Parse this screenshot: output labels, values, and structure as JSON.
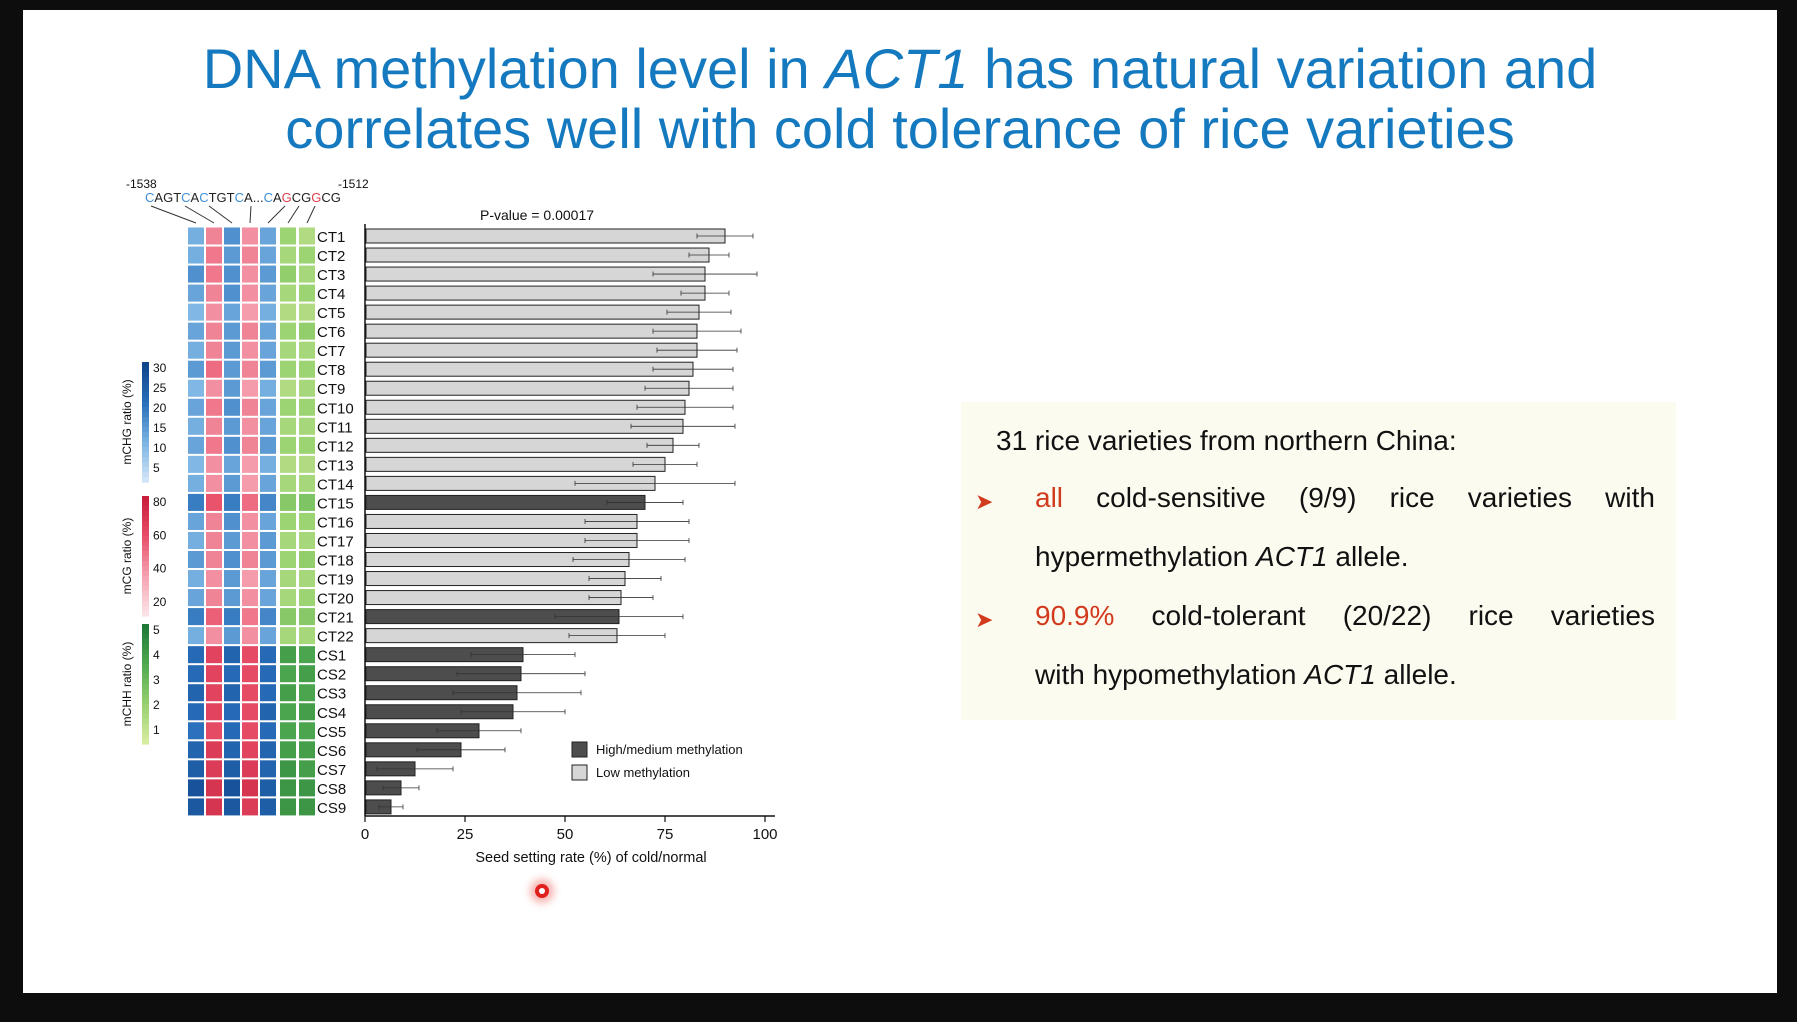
{
  "title": {
    "line1_pre": "DNA methylation level in ",
    "line1_gene": "ACT1",
    "line1_post": " has natural variation and",
    "line2": "correlates well with cold tolerance of rice varieties"
  },
  "sequence": {
    "start_pos": "-1538",
    "end_pos": "-1512",
    "text": "CAGTCACTGTCA...CAGCGGCG"
  },
  "info": {
    "heading": "31 rice varieties from northern China:",
    "bullet1": {
      "highlight": "all",
      "words": [
        "cold-sensitive",
        "(9/9)",
        "rice",
        "varieties",
        "with"
      ],
      "line2_pre": "hypermethylation ",
      "gene": "ACT1",
      "line2_post": " allele."
    },
    "bullet2": {
      "highlight": "90.9%",
      "words": [
        "cold-tolerant",
        "(20/22)",
        "rice",
        "varieties"
      ],
      "line2_pre": "with hypomethylation ",
      "gene": "ACT1",
      "line2_post": " allele."
    }
  },
  "colors": {
    "title": "#1479be",
    "high_methylation": "#4d4d4d",
    "low_methylation": "#d6d6d6",
    "accent_red": "#d23a1e"
  },
  "chart_data": {
    "type": "bar",
    "orientation": "horizontal",
    "annotation": "P-value = 0.00017",
    "xlabel": "Seed setting rate (%) of cold/normal",
    "xlim": [
      0,
      100
    ],
    "xticks": [
      0,
      25,
      50,
      75,
      100
    ],
    "legend": [
      {
        "label": "High/medium methylation",
        "color": "#4d4d4d"
      },
      {
        "label": "Low methylation",
        "color": "#d6d6d6"
      }
    ],
    "categories": [
      "CT1",
      "CT2",
      "CT3",
      "CT4",
      "CT5",
      "CT6",
      "CT7",
      "CT8",
      "CT9",
      "CT10",
      "CT11",
      "CT12",
      "CT13",
      "CT14",
      "CT15",
      "CT16",
      "CT17",
      "CT18",
      "CT19",
      "CT20",
      "CT21",
      "CT22",
      "CS1",
      "CS2",
      "CS3",
      "CS4",
      "CS5",
      "CS6",
      "CS7",
      "CS8",
      "CS9"
    ],
    "values": [
      90,
      86,
      85,
      85,
      83.5,
      83,
      83,
      82,
      81,
      80,
      79.5,
      77,
      75,
      72.5,
      70,
      68,
      68,
      66,
      65,
      64,
      63.5,
      63,
      39.5,
      39,
      38,
      37,
      28.5,
      24,
      12.5,
      9,
      6.5
    ],
    "errors": [
      7,
      5,
      13,
      6,
      8,
      11,
      10,
      10,
      11,
      12,
      13,
      6.5,
      8,
      20,
      9.5,
      13,
      13,
      14,
      9,
      8,
      16,
      12,
      13,
      16,
      16,
      13,
      10.5,
      11,
      9.5,
      4.5,
      3
    ],
    "methylation_group": [
      "low",
      "low",
      "low",
      "low",
      "low",
      "low",
      "low",
      "low",
      "low",
      "low",
      "low",
      "low",
      "low",
      "low",
      "high",
      "low",
      "low",
      "low",
      "low",
      "low",
      "high",
      "low",
      "high",
      "high",
      "high",
      "high",
      "high",
      "high",
      "high",
      "high",
      "high"
    ],
    "heatmap": {
      "columns": [
        "mCHG",
        "mCG",
        "mCHG",
        "mCG",
        "mCHG",
        "mCHH",
        "mCHH"
      ],
      "scales": [
        {
          "name": "mCHG ratio (%)",
          "ticks": [
            30,
            25,
            20,
            15,
            10,
            5
          ]
        },
        {
          "name": "mCG ratio (%)",
          "ticks": [
            80,
            60,
            40,
            20
          ]
        },
        {
          "name": "mCHH ratio (%)",
          "ticks": [
            5,
            4,
            3,
            2,
            1
          ]
        }
      ],
      "rows": [
        [
          0.35,
          0.45,
          0.5,
          0.4,
          0.4,
          0.3,
          0.2
        ],
        [
          0.35,
          0.5,
          0.45,
          0.45,
          0.4,
          0.25,
          0.3
        ],
        [
          0.5,
          0.5,
          0.5,
          0.4,
          0.45,
          0.35,
          0.25
        ],
        [
          0.4,
          0.45,
          0.5,
          0.4,
          0.4,
          0.25,
          0.3
        ],
        [
          0.3,
          0.4,
          0.4,
          0.35,
          0.35,
          0.2,
          0.2
        ],
        [
          0.4,
          0.45,
          0.45,
          0.45,
          0.4,
          0.3,
          0.35
        ],
        [
          0.35,
          0.45,
          0.45,
          0.4,
          0.4,
          0.25,
          0.25
        ],
        [
          0.45,
          0.55,
          0.45,
          0.45,
          0.45,
          0.3,
          0.3
        ],
        [
          0.3,
          0.4,
          0.45,
          0.35,
          0.35,
          0.2,
          0.25
        ],
        [
          0.4,
          0.5,
          0.5,
          0.45,
          0.4,
          0.3,
          0.3
        ],
        [
          0.35,
          0.45,
          0.45,
          0.4,
          0.4,
          0.25,
          0.25
        ],
        [
          0.4,
          0.5,
          0.5,
          0.45,
          0.45,
          0.3,
          0.3
        ],
        [
          0.3,
          0.4,
          0.4,
          0.35,
          0.35,
          0.2,
          0.2
        ],
        [
          0.35,
          0.4,
          0.45,
          0.35,
          0.4,
          0.25,
          0.25
        ],
        [
          0.6,
          0.65,
          0.6,
          0.55,
          0.55,
          0.4,
          0.45
        ],
        [
          0.4,
          0.45,
          0.5,
          0.4,
          0.4,
          0.3,
          0.3
        ],
        [
          0.35,
          0.45,
          0.45,
          0.4,
          0.45,
          0.25,
          0.25
        ],
        [
          0.45,
          0.45,
          0.5,
          0.45,
          0.45,
          0.3,
          0.35
        ],
        [
          0.35,
          0.4,
          0.45,
          0.35,
          0.4,
          0.25,
          0.25
        ],
        [
          0.4,
          0.45,
          0.45,
          0.4,
          0.4,
          0.25,
          0.3
        ],
        [
          0.6,
          0.6,
          0.6,
          0.5,
          0.55,
          0.4,
          0.4
        ],
        [
          0.35,
          0.4,
          0.45,
          0.4,
          0.4,
          0.25,
          0.25
        ],
        [
          0.7,
          0.75,
          0.75,
          0.7,
          0.7,
          0.75,
          0.7
        ],
        [
          0.7,
          0.75,
          0.7,
          0.7,
          0.7,
          0.7,
          0.75
        ],
        [
          0.75,
          0.75,
          0.75,
          0.7,
          0.7,
          0.75,
          0.7
        ],
        [
          0.7,
          0.75,
          0.7,
          0.7,
          0.75,
          0.7,
          0.75
        ],
        [
          0.65,
          0.7,
          0.7,
          0.7,
          0.7,
          0.7,
          0.7
        ],
        [
          0.75,
          0.8,
          0.75,
          0.75,
          0.75,
          0.75,
          0.75
        ],
        [
          0.8,
          0.8,
          0.8,
          0.8,
          0.75,
          0.8,
          0.75
        ],
        [
          0.9,
          0.85,
          0.9,
          0.85,
          0.8,
          0.8,
          0.8
        ],
        [
          0.85,
          0.85,
          0.85,
          0.8,
          0.8,
          0.8,
          0.8
        ]
      ]
    }
  }
}
